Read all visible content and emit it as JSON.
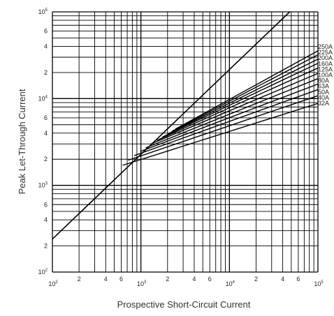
{
  "chart_data": {
    "type": "line",
    "title": "",
    "xlabel": "Prospective Short-Circuit Current",
    "ylabel": "Peak Let-Through Current",
    "x_scale": "log",
    "y_scale": "log",
    "xlim": [
      100,
      100000
    ],
    "ylim": [
      100,
      100000
    ],
    "grid": true,
    "x_ticks": [
      {
        "value": 100,
        "label": "10",
        "exp": "2"
      },
      {
        "value": 200,
        "label": "2",
        "exp": ""
      },
      {
        "value": 400,
        "label": "4",
        "exp": ""
      },
      {
        "value": 600,
        "label": "6",
        "exp": ""
      },
      {
        "value": 1000,
        "label": "10",
        "exp": "3"
      },
      {
        "value": 2000,
        "label": "2",
        "exp": ""
      },
      {
        "value": 4000,
        "label": "4",
        "exp": ""
      },
      {
        "value": 6000,
        "label": "6",
        "exp": ""
      },
      {
        "value": 10000,
        "label": "10",
        "exp": "4"
      },
      {
        "value": 20000,
        "label": "2",
        "exp": ""
      },
      {
        "value": 40000,
        "label": "4",
        "exp": ""
      },
      {
        "value": 60000,
        "label": "6",
        "exp": ""
      },
      {
        "value": 100000,
        "label": "10",
        "exp": "5"
      }
    ],
    "y_ticks": [
      {
        "value": 100,
        "label": "10",
        "exp": "2"
      },
      {
        "value": 200,
        "label": "2",
        "exp": ""
      },
      {
        "value": 400,
        "label": "4",
        "exp": ""
      },
      {
        "value": 600,
        "label": "6",
        "exp": ""
      },
      {
        "value": 1000,
        "label": "10",
        "exp": "3"
      },
      {
        "value": 2000,
        "label": "2",
        "exp": ""
      },
      {
        "value": 4000,
        "label": "4",
        "exp": ""
      },
      {
        "value": 6000,
        "label": "6",
        "exp": ""
      },
      {
        "value": 10000,
        "label": "10",
        "exp": "4"
      },
      {
        "value": 20000,
        "label": "2",
        "exp": ""
      },
      {
        "value": 40000,
        "label": "4",
        "exp": ""
      },
      {
        "value": 60000,
        "label": "6",
        "exp": ""
      },
      {
        "value": 100000,
        "label": "10",
        "exp": "5"
      }
    ],
    "x_grid": [
      100,
      200,
      300,
      400,
      500,
      600,
      700,
      800,
      900,
      1000,
      2000,
      3000,
      4000,
      5000,
      6000,
      7000,
      8000,
      9000,
      10000,
      20000,
      30000,
      40000,
      50000,
      60000,
      70000,
      80000,
      90000,
      100000
    ],
    "y_grid": [
      100,
      200,
      300,
      400,
      500,
      600,
      700,
      800,
      900,
      1000,
      2000,
      3000,
      4000,
      5000,
      6000,
      7000,
      8000,
      9000,
      10000,
      20000,
      30000,
      40000,
      50000,
      60000,
      70000,
      80000,
      90000,
      100000
    ],
    "envelope": {
      "x": [
        100,
        48000
      ],
      "y": [
        240,
        100000
      ]
    },
    "series": [
      {
        "name": "250A",
        "x": [
          2450,
          100000
        ],
        "y": [
          4450,
          35500
        ]
      },
      {
        "name": "225A",
        "x": [
          2250,
          100000
        ],
        "y": [
          4200,
          32000
        ]
      },
      {
        "name": "200A",
        "x": [
          2000,
          100000
        ],
        "y": [
          3900,
          28500
        ]
      },
      {
        "name": "160A",
        "x": [
          1750,
          100000
        ],
        "y": [
          3600,
          25500
        ]
      },
      {
        "name": "125A",
        "x": [
          1520,
          100000
        ],
        "y": [
          3300,
          22500
        ]
      },
      {
        "name": "100A",
        "x": [
          1300,
          100000
        ],
        "y": [
          3000,
          19500
        ]
      },
      {
        "name": "80A",
        "x": [
          1130,
          100000
        ],
        "y": [
          2700,
          17000
        ]
      },
      {
        "name": "63A",
        "x": [
          980,
          100000
        ],
        "y": [
          2450,
          14700
        ]
      },
      {
        "name": "50A",
        "x": [
          840,
          100000
        ],
        "y": [
          2200,
          12700
        ]
      },
      {
        "name": "40A",
        "x": [
          720,
          100000
        ],
        "y": [
          1950,
          10800
        ]
      },
      {
        "name": "32A",
        "x": [
          620,
          100000
        ],
        "y": [
          1700,
          8800
        ]
      }
    ]
  }
}
